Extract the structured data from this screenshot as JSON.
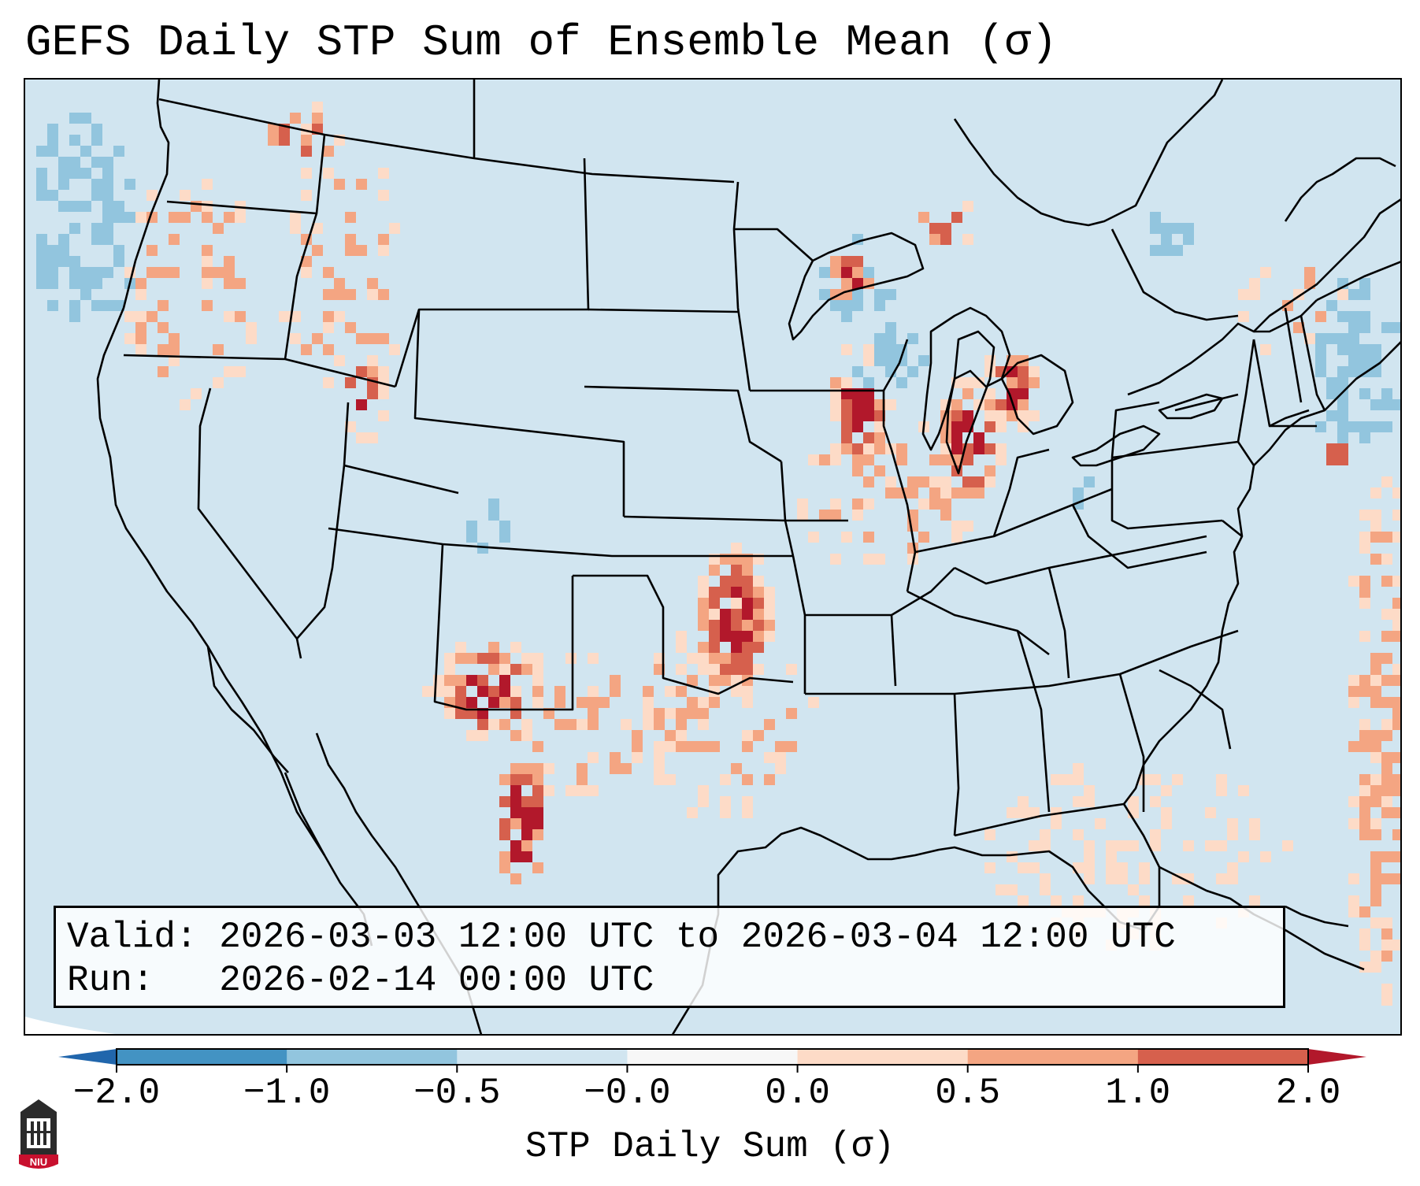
{
  "title": "GEFS Daily STP Sum of Ensemble Mean (σ)",
  "info": {
    "valid_label": "Valid:",
    "valid_value": "2026-03-03 12:00 UTC to 2026-03-04 12:00 UTC",
    "run_label": "Run:",
    "run_value": "2026-02-14 00:00 UTC"
  },
  "colorbar": {
    "label": "STP Daily Sum (σ)",
    "ticks": [
      "−2.0",
      "−1.0",
      "−0.5",
      "−0.0",
      "0.0",
      "0.5",
      "1.0",
      "2.0"
    ],
    "bins": [
      {
        "from": -2.0,
        "to": -1.0,
        "color": "#4393c3"
      },
      {
        "from": -1.0,
        "to": -0.5,
        "color": "#92c5de"
      },
      {
        "from": -0.5,
        "to": -0.0,
        "color": "#d1e5f0"
      },
      {
        "from": -0.0,
        "to": 0.0,
        "color": "#f7f7f7"
      },
      {
        "from": 0.0,
        "to": 0.5,
        "color": "#fddbc7"
      },
      {
        "from": 0.5,
        "to": 1.0,
        "color": "#f4a582"
      },
      {
        "from": 1.0,
        "to": 2.0,
        "color": "#d6604d"
      }
    ],
    "under_color": "#2166ac",
    "over_color": "#b2182b"
  },
  "map": {
    "background_color": "#d1e5f0",
    "logo_text": "NIU"
  }
}
